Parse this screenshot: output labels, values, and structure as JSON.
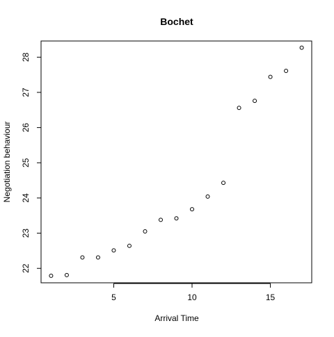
{
  "chart_data": {
    "type": "scatter",
    "title": "Bochet",
    "xlabel": "Arrival Time",
    "ylabel": "Negotiation behaviour",
    "xlim": [
      0.36,
      17.64
    ],
    "ylim": [
      21.59,
      28.46
    ],
    "xticks": [
      5,
      10,
      15
    ],
    "yticks": [
      22,
      23,
      24,
      25,
      26,
      27,
      28
    ],
    "grid": false,
    "marker": "open-circle",
    "x": [
      1,
      2,
      3,
      4,
      5,
      6,
      7,
      8,
      9,
      10,
      11,
      12,
      13,
      14,
      15,
      16,
      17
    ],
    "y": [
      21.79,
      21.81,
      22.31,
      22.31,
      22.51,
      22.64,
      23.05,
      23.38,
      23.42,
      23.68,
      24.04,
      24.43,
      26.56,
      26.76,
      27.44,
      27.61,
      28.27
    ]
  }
}
